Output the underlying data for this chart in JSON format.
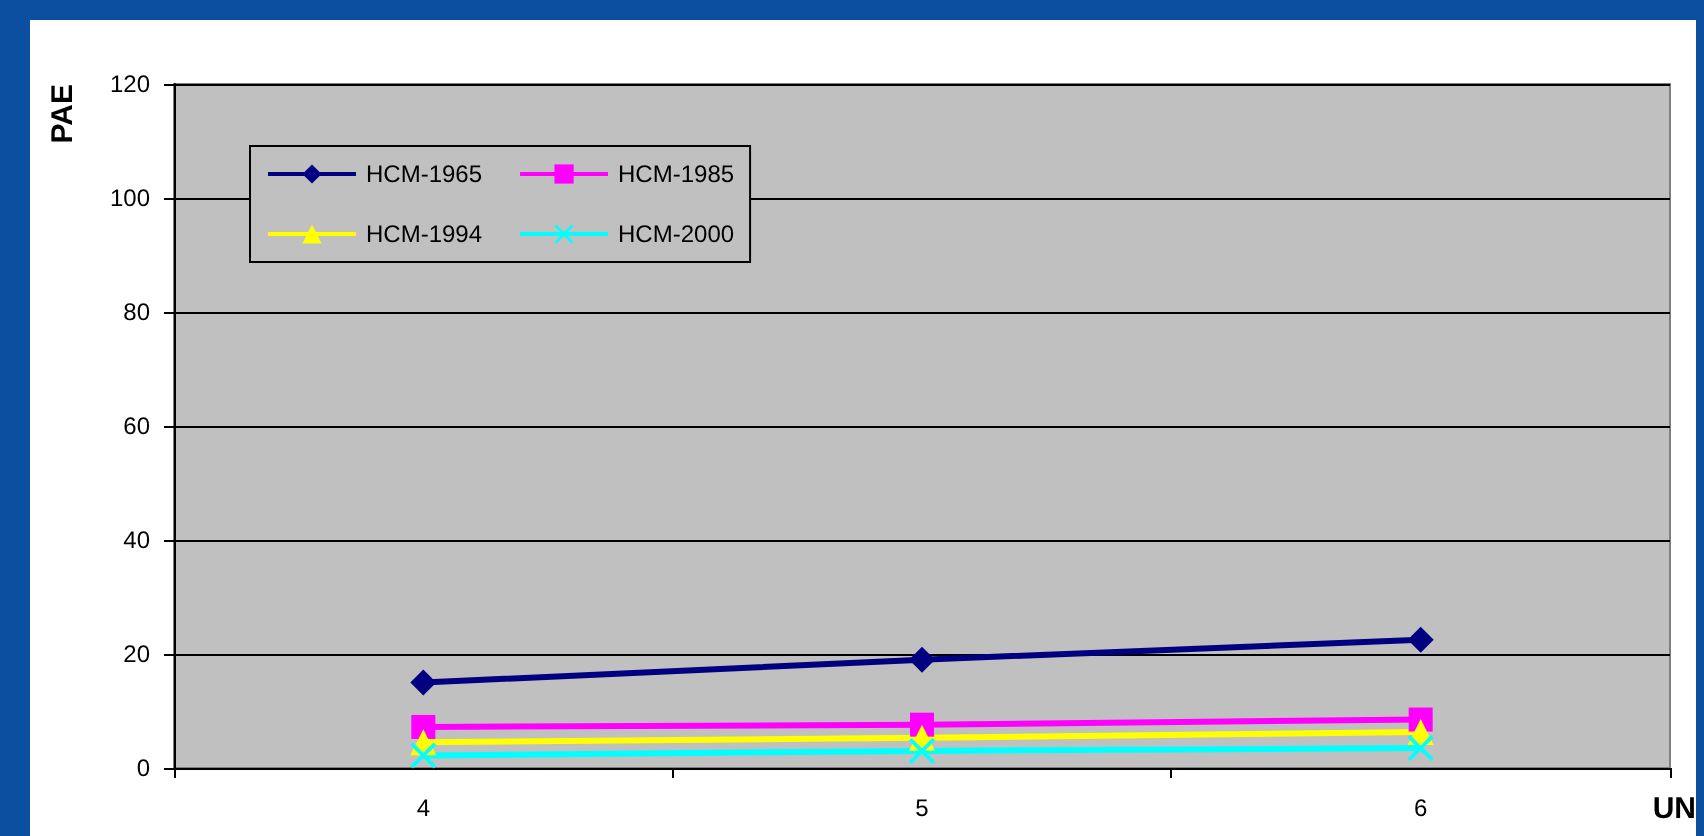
{
  "chart_data": {
    "type": "line",
    "xlabel": "UN",
    "ylabel": "PAE",
    "categories": [
      "4",
      "5",
      "6"
    ],
    "ylim": [
      0,
      120
    ],
    "yticks": [
      0,
      20,
      40,
      60,
      80,
      100,
      120
    ],
    "grid": "y",
    "legend": "top left",
    "series": [
      {
        "name": "HCM-1965",
        "color": "#000080",
        "marker": "diamond",
        "values": [
          15,
          19,
          22.5
        ]
      },
      {
        "name": "HCM-1985",
        "color": "#ff00ff",
        "marker": "square",
        "values": [
          7.2,
          7.6,
          8.5
        ]
      },
      {
        "name": "HCM-1994",
        "color": "#ffff00",
        "marker": "triangle",
        "values": [
          4.5,
          5.3,
          6.3
        ]
      },
      {
        "name": "HCM-2000",
        "color": "#00ffff",
        "marker": "cross",
        "values": [
          2.2,
          3,
          3.5
        ]
      }
    ]
  }
}
